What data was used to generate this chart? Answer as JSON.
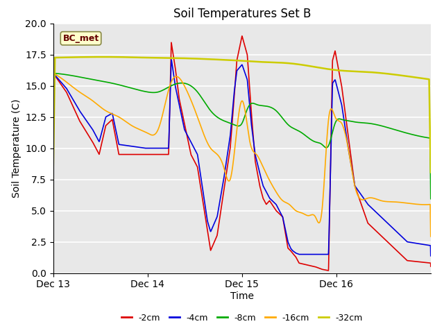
{
  "title": "Soil Temperatures Set B",
  "xlabel": "Time",
  "ylabel": "Soil Temperature (C)",
  "ylim": [
    0,
    20
  ],
  "annotation": "BC_met",
  "plot_bg_color": "#e8e8e8",
  "fig_bg_color": "#ffffff",
  "series": {
    "-2cm": {
      "color": "#dd0000",
      "lw": 1.2
    },
    "-4cm": {
      "color": "#0000dd",
      "lw": 1.2
    },
    "-8cm": {
      "color": "#00aa00",
      "lw": 1.2
    },
    "-16cm": {
      "color": "#ffaa00",
      "lw": 1.2
    },
    "-32cm": {
      "color": "#cccc00",
      "lw": 1.8
    }
  },
  "xtick_labels": [
    "Dec 13",
    "Dec 14",
    "Dec 15",
    "Dec 16"
  ],
  "xtick_positions": [
    0,
    1440,
    2880,
    4320
  ],
  "total_minutes": 5760,
  "N": 5760
}
